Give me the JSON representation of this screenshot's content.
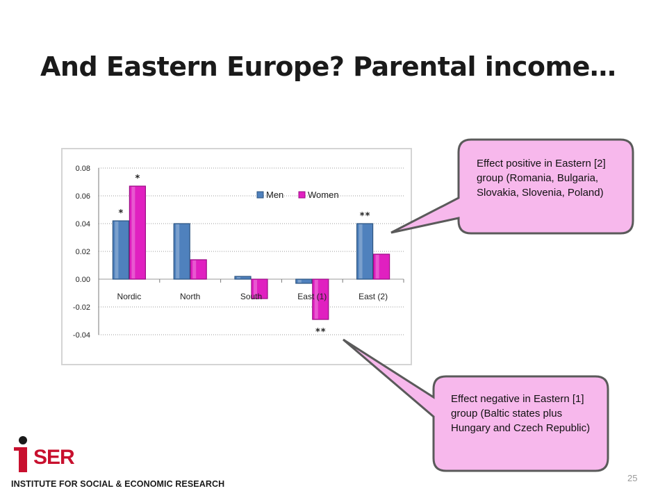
{
  "slide": {
    "title": "And Eastern Europe? Parental income…",
    "page_number": "25"
  },
  "callouts": [
    {
      "text": "Effect positive in Eastern [2] group (Romania, Bulgaria, Slovakia, Slovenia, Poland)"
    },
    {
      "text": "Effect negative in Eastern [1] group (Baltic states plus Hungary and Czech Republic)"
    }
  ],
  "logo": {
    "letters": "SER",
    "caption": "INSTITUTE FOR SOCIAL & ECONOMIC RESEARCH"
  },
  "colors": {
    "men": "#4f81bd",
    "women": "#e020c0",
    "callout_fill": "#f7b8ec",
    "callout_border": "#5a5a5a",
    "brand_red": "#c8102e"
  },
  "chart_data": {
    "type": "bar",
    "categories": [
      "Nordic",
      "North",
      "South",
      "East (1)",
      "East (2)"
    ],
    "series": [
      {
        "name": "Men",
        "values": [
          0.042,
          0.04,
          0.002,
          -0.003,
          0.04
        ]
      },
      {
        "name": "Women",
        "values": [
          0.067,
          0.014,
          -0.014,
          -0.029,
          0.018
        ]
      }
    ],
    "significance": [
      {
        "series": 0,
        "category": 0,
        "label": "*"
      },
      {
        "series": 1,
        "category": 0,
        "label": "*"
      },
      {
        "series": 0,
        "category": 4,
        "label": "**"
      },
      {
        "series": 1,
        "category": 3,
        "label": "**"
      }
    ],
    "yticks": [
      "0.08",
      "0.06",
      "0.04",
      "0.02",
      "0.00",
      "-0.02",
      "-0.04"
    ],
    "ylim": [
      -0.04,
      0.08
    ],
    "grid": true,
    "legend_position": "top-right"
  }
}
